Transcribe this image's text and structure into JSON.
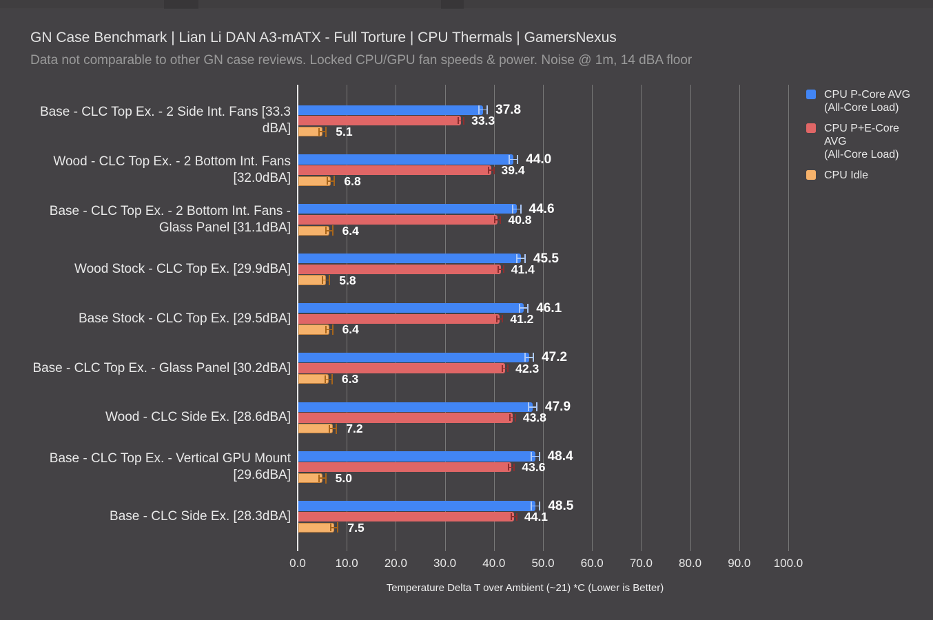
{
  "header": {
    "title": "GN Case Benchmark | Lian Li DAN A3-mATX - Full Torture | CPU Thermals | GamersNexus",
    "subtitle": "Data not comparable to other GN case reviews. Locked CPU/GPU fan speeds & power. Noise @ 1m, 14 dBA floor"
  },
  "colors": {
    "background": "#444245",
    "p_core": "#4285f4",
    "p_core_error": "#adc9f8",
    "pe_core": "#e06666",
    "pe_core_error": "#8b2e2e",
    "idle": "#f6b26b",
    "idle_error": "#a8651a",
    "grid": "#787878",
    "axis": "#e8e8e8",
    "text": "#e8e8e8",
    "muted": "#9a9a9a",
    "value_label": "#ffffff"
  },
  "legend": [
    {
      "name": "CPU P-Core AVG (All-Core Load)",
      "lines": [
        "CPU P-Core AVG",
        "(All-Core Load)"
      ],
      "color_key": "p_core"
    },
    {
      "name": "CPU P+E-Core AVG (All-Core Load)",
      "lines": [
        "CPU P+E-Core",
        "AVG",
        "(All-Core Load)"
      ],
      "color_key": "pe_core"
    },
    {
      "name": "CPU Idle",
      "lines": [
        "CPU Idle"
      ],
      "color_key": "idle"
    }
  ],
  "chart_data": {
    "type": "bar",
    "orientation": "horizontal",
    "xlabel": "Temperature Delta T over Ambient (~21) *C (Lower is Better)",
    "xlim": [
      0,
      100
    ],
    "xticks": [
      0,
      10,
      20,
      30,
      40,
      50,
      60,
      70,
      80,
      90,
      100
    ],
    "xtick_labels": [
      "0.0",
      "10.0",
      "20.0",
      "30.0",
      "40.0",
      "50.0",
      "60.0",
      "70.0",
      "80.0",
      "90.0",
      "100.0"
    ],
    "grid": true,
    "legend_position": "right",
    "categories": [
      {
        "label": "Base - CLC Top Ex. - 2 Side Int. Fans [33.3 dBA]",
        "lines": [
          "Base - CLC Top Ex. - 2 Side Int. Fans [33.3",
          "dBA]"
        ]
      },
      {
        "label": "Wood - CLC Top Ex. - 2 Bottom Int. Fans [32.0dBA]",
        "lines": [
          "Wood - CLC Top Ex. - 2 Bottom Int. Fans",
          "[32.0dBA]"
        ]
      },
      {
        "label": "Base - CLC Top Ex. - 2 Bottom Int. Fans - Glass Panel [31.1dBA]",
        "lines": [
          "Base - CLC Top Ex. - 2 Bottom Int. Fans -",
          "Glass Panel [31.1dBA]"
        ]
      },
      {
        "label": "Wood Stock - CLC Top Ex. [29.9dBA]",
        "lines": [
          "Wood Stock - CLC Top Ex. [29.9dBA]"
        ]
      },
      {
        "label": "Base Stock - CLC Top Ex. [29.5dBA]",
        "lines": [
          "Base Stock - CLC Top Ex. [29.5dBA]"
        ]
      },
      {
        "label": "Base - CLC Top Ex. - Glass Panel [30.2dBA]",
        "lines": [
          "Base - CLC Top Ex. - Glass Panel [30.2dBA]"
        ]
      },
      {
        "label": "Wood - CLC Side Ex. [28.6dBA]",
        "lines": [
          "Wood - CLC Side Ex. [28.6dBA]"
        ]
      },
      {
        "label": "Base - CLC Top Ex. - Vertical GPU Mount [29.6dBA]",
        "lines": [
          "Base - CLC Top Ex. - Vertical GPU Mount",
          "[29.6dBA]"
        ]
      },
      {
        "label": "Base - CLC Side Ex. [28.3dBA]",
        "lines": [
          "Base - CLC Side Ex. [28.3dBA]"
        ]
      }
    ],
    "series": [
      {
        "name": "CPU P-Core AVG (All-Core Load)",
        "color_key": "p_core",
        "values": [
          37.8,
          44.0,
          44.6,
          45.5,
          46.1,
          47.2,
          47.9,
          48.4,
          48.5
        ]
      },
      {
        "name": "CPU P+E-Core AVG (All-Core Load)",
        "color_key": "pe_core",
        "values": [
          33.3,
          39.4,
          40.8,
          41.4,
          41.2,
          42.3,
          43.8,
          43.6,
          44.1
        ]
      },
      {
        "name": "CPU Idle",
        "color_key": "idle",
        "values": [
          5.1,
          6.8,
          6.4,
          5.8,
          6.4,
          6.3,
          7.2,
          5.0,
          7.5
        ]
      }
    ],
    "value_label_format": "0.1f"
  }
}
